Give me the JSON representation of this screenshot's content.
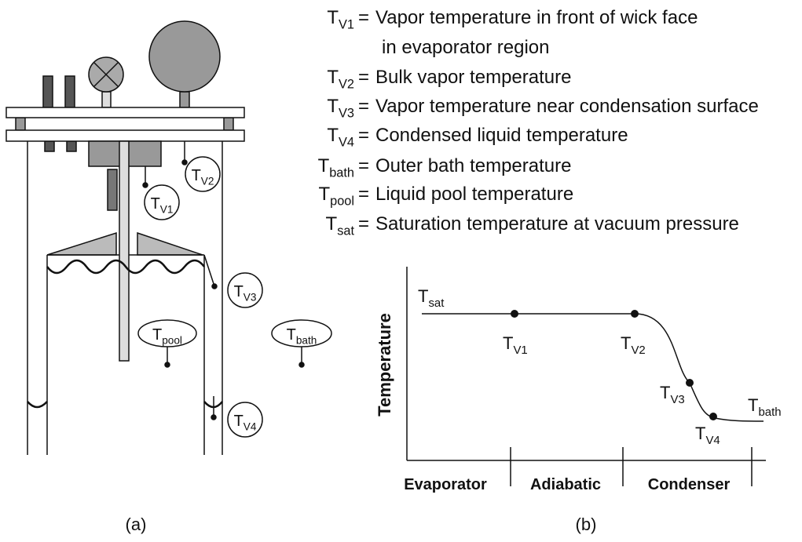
{
  "legend": {
    "separator": "=",
    "entries": [
      {
        "symbol": {
          "base": "T",
          "sub": "V1"
        },
        "definition": [
          "Vapor temperature in front of wick face",
          "in evaporator region"
        ]
      },
      {
        "symbol": {
          "base": "T",
          "sub": "V2"
        },
        "definition": [
          "Bulk vapor temperature"
        ]
      },
      {
        "symbol": {
          "base": "T",
          "sub": "V3"
        },
        "definition": [
          "Vapor temperature near condensation surface"
        ]
      },
      {
        "symbol": {
          "base": "T",
          "sub": "V4"
        },
        "definition": [
          "Condensed liquid temperature"
        ]
      },
      {
        "symbol": {
          "base": "T",
          "sub": "bath"
        },
        "definition": [
          "Outer bath temperature"
        ]
      },
      {
        "symbol": {
          "base": "T",
          "sub": "pool"
        },
        "definition": [
          "Liquid pool temperature"
        ]
      },
      {
        "symbol": {
          "base": "T",
          "sub": "sat"
        },
        "definition": [
          "Saturation temperature at vacuum pressure"
        ]
      }
    ]
  },
  "panel_a": {
    "caption": "(a)",
    "labels": [
      {
        "base": "T",
        "sub": "V1"
      },
      {
        "base": "T",
        "sub": "V2"
      },
      {
        "base": "T",
        "sub": "V3"
      },
      {
        "base": "T",
        "sub": "V4"
      },
      {
        "base": "T",
        "sub": "pool"
      },
      {
        "base": "T",
        "sub": "bath"
      }
    ]
  },
  "panel_b": {
    "caption": "(b)",
    "y_axis_label": "Temperature",
    "regions": [
      "Evaporator",
      "Adiabatic",
      "Condenser"
    ],
    "labels": [
      {
        "base": "T",
        "sub": "sat"
      },
      {
        "base": "T",
        "sub": "V1"
      },
      {
        "base": "T",
        "sub": "V2"
      },
      {
        "base": "T",
        "sub": "V3"
      },
      {
        "base": "T",
        "sub": "V4"
      },
      {
        "base": "T",
        "sub": "bath"
      }
    ]
  }
}
